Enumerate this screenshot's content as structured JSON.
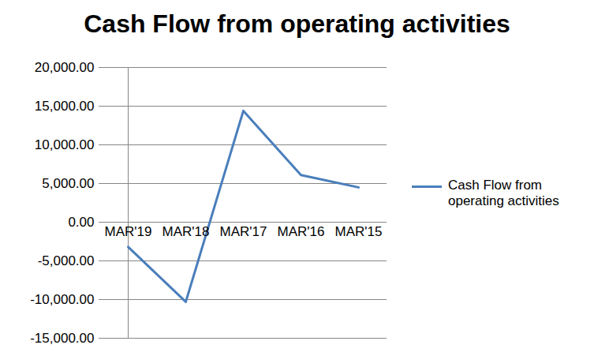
{
  "chart_data": {
    "type": "line",
    "title": "Cash Flow from operating activities",
    "categories": [
      "MAR'19",
      "MAR'18",
      "MAR'17",
      "MAR'16",
      "MAR'15"
    ],
    "series": [
      {
        "name": "Cash Flow from operating activities",
        "color": "#4a7ebb",
        "values": [
          -3200,
          -10300,
          14400,
          6100,
          4500
        ]
      }
    ],
    "ylim": [
      -15000,
      20000
    ],
    "yticks": [
      {
        "value": -15000,
        "label": "-15,000.00"
      },
      {
        "value": -10000,
        "label": "-10,000.00"
      },
      {
        "value": -5000,
        "label": "-5,000.00"
      },
      {
        "value": 0,
        "label": "0.00"
      },
      {
        "value": 5000,
        "label": "5,000.00"
      },
      {
        "value": 10000,
        "label": "10,000.00"
      },
      {
        "value": 15000,
        "label": "15,000.00"
      },
      {
        "value": 20000,
        "label": "20,000.00"
      }
    ],
    "grid": true,
    "legend": "right"
  }
}
